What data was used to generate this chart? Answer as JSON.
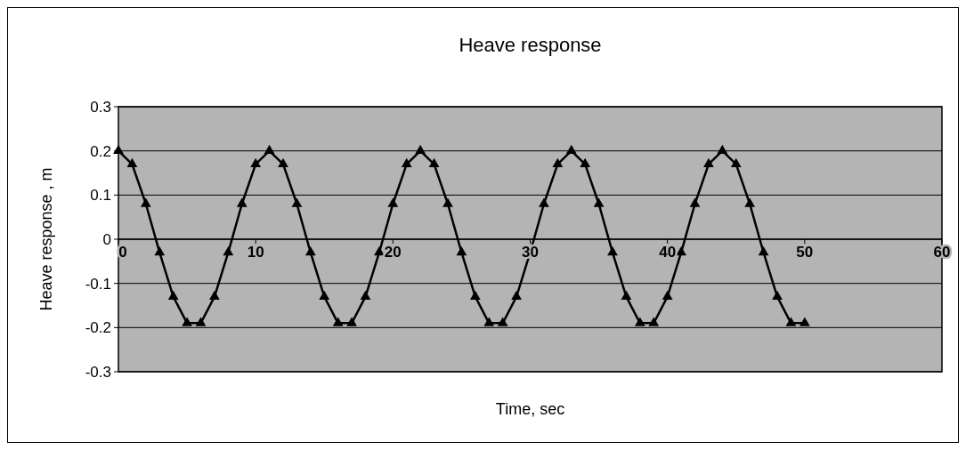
{
  "chart_data": {
    "type": "line",
    "title": "Heave response",
    "xlabel": "Time, sec",
    "ylabel": "Heave response , m",
    "x": [
      0,
      1,
      2,
      3,
      4,
      5,
      6,
      7,
      8,
      9,
      10,
      11,
      12,
      13,
      14,
      15,
      16,
      17,
      18,
      19,
      20,
      21,
      22,
      23,
      24,
      25,
      26,
      27,
      28,
      29,
      30,
      31,
      32,
      33,
      34,
      35,
      36,
      37,
      38,
      39,
      40,
      41,
      42,
      43,
      44,
      45,
      46,
      47,
      48,
      49,
      50
    ],
    "series": [
      {
        "color": "#000000",
        "values": [
          0.2,
          0.17,
          0.08,
          -0.03,
          -0.13,
          -0.19,
          -0.19,
          -0.13,
          -0.03,
          0.08,
          0.17,
          0.2,
          0.17,
          0.08,
          -0.03,
          -0.13,
          -0.19,
          -0.19,
          -0.13,
          -0.03,
          0.08,
          0.17,
          0.2,
          0.17,
          0.08,
          -0.03,
          -0.13,
          -0.19,
          -0.19,
          -0.13,
          -0.03,
          0.08,
          0.17,
          0.2,
          0.17,
          0.08,
          -0.03,
          -0.13,
          -0.19,
          -0.19,
          -0.13,
          -0.03,
          0.08,
          0.17,
          0.2,
          0.17,
          0.08,
          -0.03,
          -0.13,
          -0.19,
          -0.19
        ]
      }
    ],
    "xlim": [
      0,
      60
    ],
    "xticks": [
      0,
      10,
      20,
      30,
      40,
      50,
      60
    ],
    "ylim": [
      -0.3,
      0.3
    ],
    "yticks": [
      -0.3,
      -0.2,
      -0.1,
      0,
      0.1,
      0.2,
      0.3
    ],
    "grid": "y",
    "marker": "triangle",
    "line_style": "solid"
  }
}
